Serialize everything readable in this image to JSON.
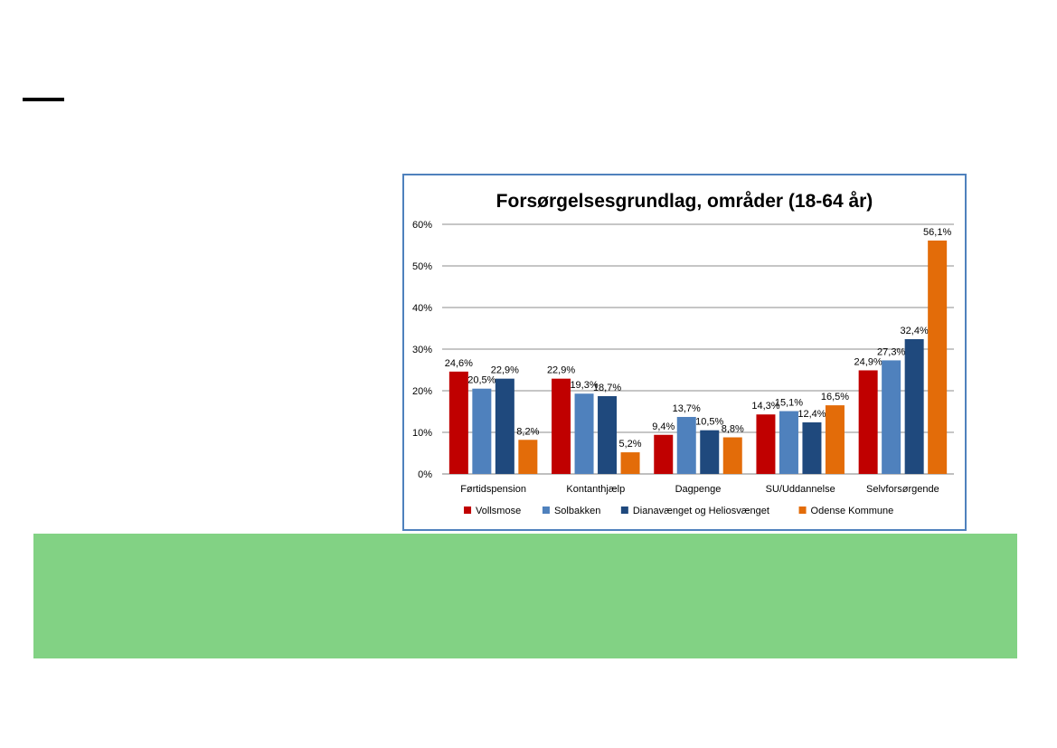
{
  "colors": {
    "background": "#ffffff",
    "green_panel": "#82d284",
    "chart_border": "#4f81bd",
    "gridline": "#8c8c8c"
  },
  "chart_data": {
    "type": "bar",
    "title": "Forsørgelsesgrundlag, områder (18-64 år)",
    "xlabel": "",
    "ylabel": "",
    "ylim": [
      0,
      60
    ],
    "yticks": [
      0,
      10,
      20,
      30,
      40,
      50,
      60
    ],
    "ytick_labels": [
      "0%",
      "10%",
      "20%",
      "30%",
      "40%",
      "50%",
      "60%"
    ],
    "grid": true,
    "legend_position": "bottom",
    "categories": [
      "Førtidspension",
      "Kontanthjælp",
      "Dagpenge",
      "SU/Uddannelse",
      "Selvforsørgende"
    ],
    "series": [
      {
        "name": "Vollsmose",
        "color": "#c00000",
        "values": [
          24.6,
          22.9,
          9.4,
          14.3,
          24.9
        ],
        "labels": [
          "24,6%",
          "22,9%",
          "9,4%",
          "14,3%",
          "24,9%"
        ]
      },
      {
        "name": "Solbakken",
        "color": "#4f81bd",
        "values": [
          20.5,
          19.3,
          13.7,
          15.1,
          27.3
        ],
        "labels": [
          "20,5%",
          "19,3%",
          "13,7%",
          "15,1%",
          "27,3%"
        ]
      },
      {
        "name": "Dianavænget og Heliosvænget",
        "color": "#1f497d",
        "values": [
          22.9,
          18.7,
          10.5,
          12.4,
          32.4
        ],
        "labels": [
          "22,9%",
          "18,7%",
          "10,5%",
          "12,4%",
          "32,4%"
        ]
      },
      {
        "name": "Odense Kommune",
        "color": "#e36c09",
        "values": [
          8.2,
          5.2,
          8.8,
          16.5,
          56.1
        ],
        "labels": [
          "8,2%",
          "5,2%",
          "8,8%",
          "16,5%",
          "56,1%"
        ]
      }
    ]
  }
}
